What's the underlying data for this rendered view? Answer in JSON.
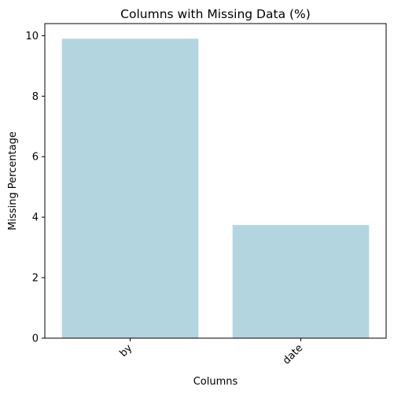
{
  "chart_data": {
    "type": "bar",
    "title": "Columns with Missing Data (%)",
    "xlabel": "Columns",
    "ylabel": "Missing Percentage",
    "categories": [
      "by",
      "date"
    ],
    "values": [
      9.9,
      3.74
    ],
    "ylim": [
      0,
      10.4
    ],
    "yticks": [
      0,
      2,
      4,
      6,
      8,
      10
    ],
    "ytick_labels": [
      "0",
      "2",
      "4",
      "6",
      "8",
      "10"
    ],
    "bar_color": "#b3d5e0",
    "grid": false,
    "legend": "none",
    "xtick_rotation": 45
  }
}
